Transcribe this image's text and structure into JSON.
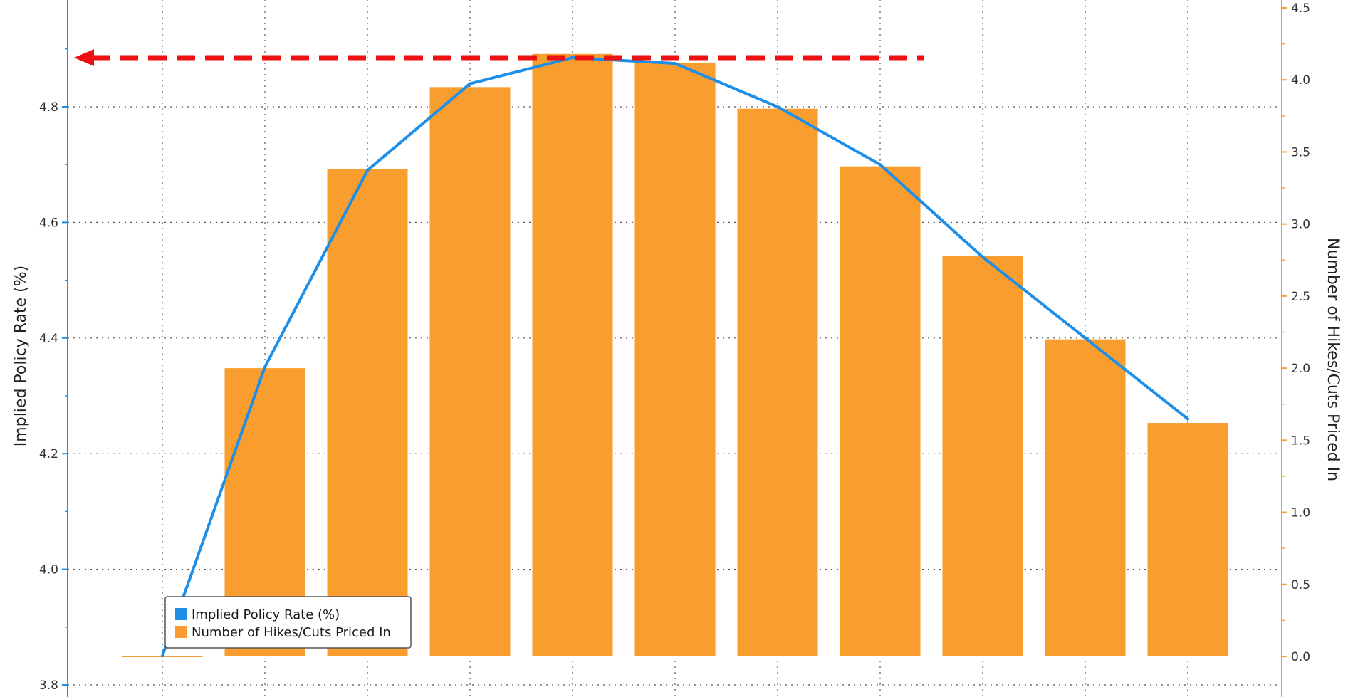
{
  "chart_data": {
    "type": "bar",
    "ylabel_left": "Implied Policy Rate (%)",
    "ylabel_right": "Number of Hikes/Cuts Priced In",
    "left_ylim": [
      3.8,
      4.95
    ],
    "left_ticks": [
      "3.8",
      "4.0",
      "4.2",
      "4.4",
      "4.6",
      "4.8"
    ],
    "right_ylim": [
      -0.3,
      4.55
    ],
    "right_ticks": [
      "0.0",
      "0.5",
      "1.0",
      "1.5",
      "2.0",
      "2.5",
      "3.0",
      "3.5",
      "4.0",
      "4.5"
    ],
    "grid": true,
    "legend_position": "bottom-left",
    "series": [
      {
        "name": "Number of Hikes/Cuts Priced In",
        "type": "bar",
        "axis": "right",
        "color": "#f99d2e",
        "values": [
          0.0,
          2.0,
          3.38,
          3.95,
          4.18,
          4.12,
          3.8,
          3.4,
          2.78,
          2.2,
          1.62
        ]
      },
      {
        "name": "Implied Policy Rate (%)",
        "type": "line",
        "axis": "left",
        "color": "#1e8fe8",
        "values": [
          3.85,
          4.35,
          4.69,
          4.84,
          4.885,
          4.875,
          4.8,
          4.7,
          4.54,
          4.4,
          4.26
        ]
      }
    ],
    "annotations": [
      {
        "type": "dashed-arrow",
        "color": "#ee1111",
        "direction": "left",
        "level": 4.885,
        "axis": "left"
      }
    ]
  },
  "legend": {
    "items": [
      {
        "label": "Implied Policy Rate (%)",
        "color": "#1e8fe8"
      },
      {
        "label": "Number of Hikes/Cuts Priced In",
        "color": "#f99d2e"
      }
    ]
  }
}
